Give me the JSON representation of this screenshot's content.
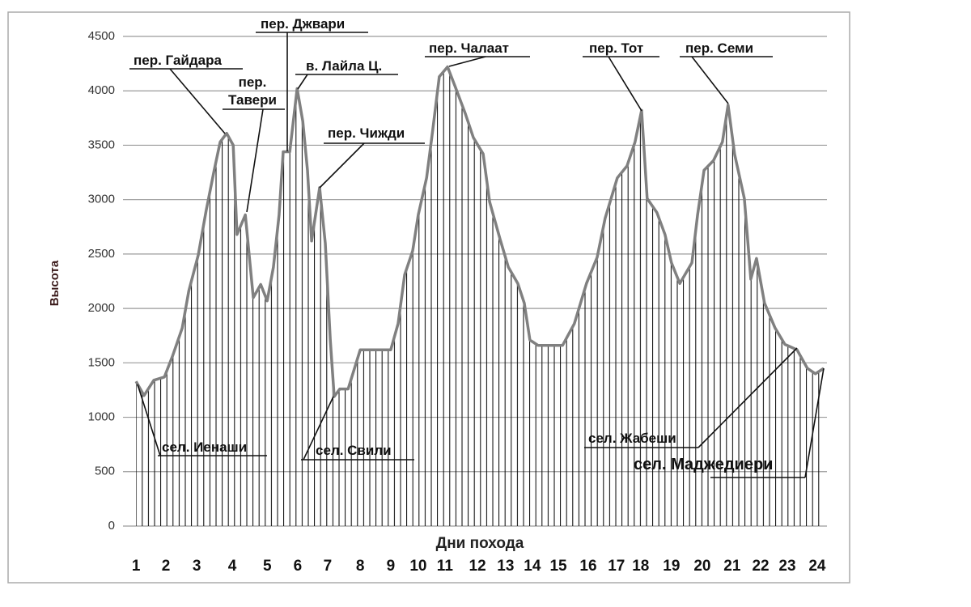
{
  "chart_data": {
    "type": "line",
    "y_label": "Высота",
    "x_label": "Дни похода",
    "color": "#808080",
    "grid": true,
    "x": [
      1.0,
      1.27,
      1.6,
      1.96,
      2.23,
      2.56,
      2.78,
      3.1,
      3.37,
      3.64,
      3.84,
      4.06,
      4.28,
      4.41,
      4.69,
      4.96,
      5.21,
      5.43,
      5.64,
      5.83,
      5.97,
      6.19,
      6.44,
      6.63,
      6.79,
      6.93,
      7.2,
      7.39,
      7.56,
      7.69,
      7.88,
      8.16,
      8.57,
      8.98,
      9.6,
      9.85,
      10.07,
      10.34,
      10.53,
      10.81,
      11.02,
      11.24,
      11.52,
      11.79,
      12.12,
      12.39,
      12.72,
      12.94,
      13.29,
      13.57,
      13.89,
      14.11,
      14.3,
      14.58,
      15.4,
      15.8,
      16.21,
      16.57,
      16.84,
      17.25,
      17.58,
      17.85,
      18.07,
      18.26,
      18.59,
      18.86,
      19.08,
      19.36,
      19.77,
      19.96,
      20.18,
      20.5,
      20.8,
      20.99,
      21.21,
      21.54,
      21.76,
      21.95,
      22.22,
      22.58,
      22.91,
      23.32,
      23.67,
      23.94,
      24.22
    ],
    "values": [
      1330,
      1200,
      1340,
      1370,
      1560,
      1820,
      2160,
      2490,
      2900,
      3270,
      3530,
      3610,
      3500,
      2680,
      2860,
      2100,
      2220,
      2070,
      2380,
      2860,
      3440,
      3440,
      4020,
      3720,
      3270,
      2620,
      3110,
      2600,
      1710,
      1190,
      1260,
      1260,
      1620,
      1620,
      1620,
      1860,
      2310,
      2530,
      2860,
      3200,
      3640,
      4130,
      4220,
      4030,
      3790,
      3570,
      3420,
      2980,
      2640,
      2380,
      2230,
      2050,
      1710,
      1660,
      1660,
      1860,
      2230,
      2470,
      2830,
      3200,
      3310,
      3530,
      3820,
      3010,
      2880,
      2680,
      2420,
      2230,
      2420,
      2860,
      3270,
      3360,
      3530,
      3870,
      3420,
      3010,
      2270,
      2460,
      2050,
      1820,
      1670,
      1620,
      1450,
      1400,
      1450
    ],
    "xlim": [
      0.56,
      24.33
    ],
    "xticks": [
      {
        "value": 1.0,
        "label": "1"
      },
      {
        "value": 2.01,
        "label": "2"
      },
      {
        "value": 3.05,
        "label": "3"
      },
      {
        "value": 4.25,
        "label": "4"
      },
      {
        "value": 5.43,
        "label": "5"
      },
      {
        "value": 6.46,
        "label": "6"
      },
      {
        "value": 7.47,
        "label": "7"
      },
      {
        "value": 8.57,
        "label": "8"
      },
      {
        "value": 9.6,
        "label": "9"
      },
      {
        "value": 10.53,
        "label": "10"
      },
      {
        "value": 11.43,
        "label": "11"
      },
      {
        "value": 12.53,
        "label": "12"
      },
      {
        "value": 13.48,
        "label": "13"
      },
      {
        "value": 14.38,
        "label": "14"
      },
      {
        "value": 15.26,
        "label": "15"
      },
      {
        "value": 16.27,
        "label": "16"
      },
      {
        "value": 17.22,
        "label": "17"
      },
      {
        "value": 18.04,
        "label": "18"
      },
      {
        "value": 19.08,
        "label": "19"
      },
      {
        "value": 20.12,
        "label": "20"
      },
      {
        "value": 21.13,
        "label": "21"
      },
      {
        "value": 22.09,
        "label": "22"
      },
      {
        "value": 22.99,
        "label": "23"
      },
      {
        "value": 24.0,
        "label": "24"
      }
    ],
    "ylim": [
      0,
      4500
    ],
    "yticks": [
      0,
      500,
      1000,
      1500,
      2000,
      2500,
      3000,
      3500,
      4000,
      4500
    ],
    "annotations": [
      "пер. Гайдара",
      "пер. Тавери",
      "пер. Джвари",
      "в. Лайла Ц.",
      "пер. Чижди",
      "пер. Чалаат",
      "пер. Тот",
      "пер. Семи",
      "сел. Иенаши",
      "сел. Свили",
      "сел. Жабеши",
      "сел. Маджедиери"
    ]
  }
}
